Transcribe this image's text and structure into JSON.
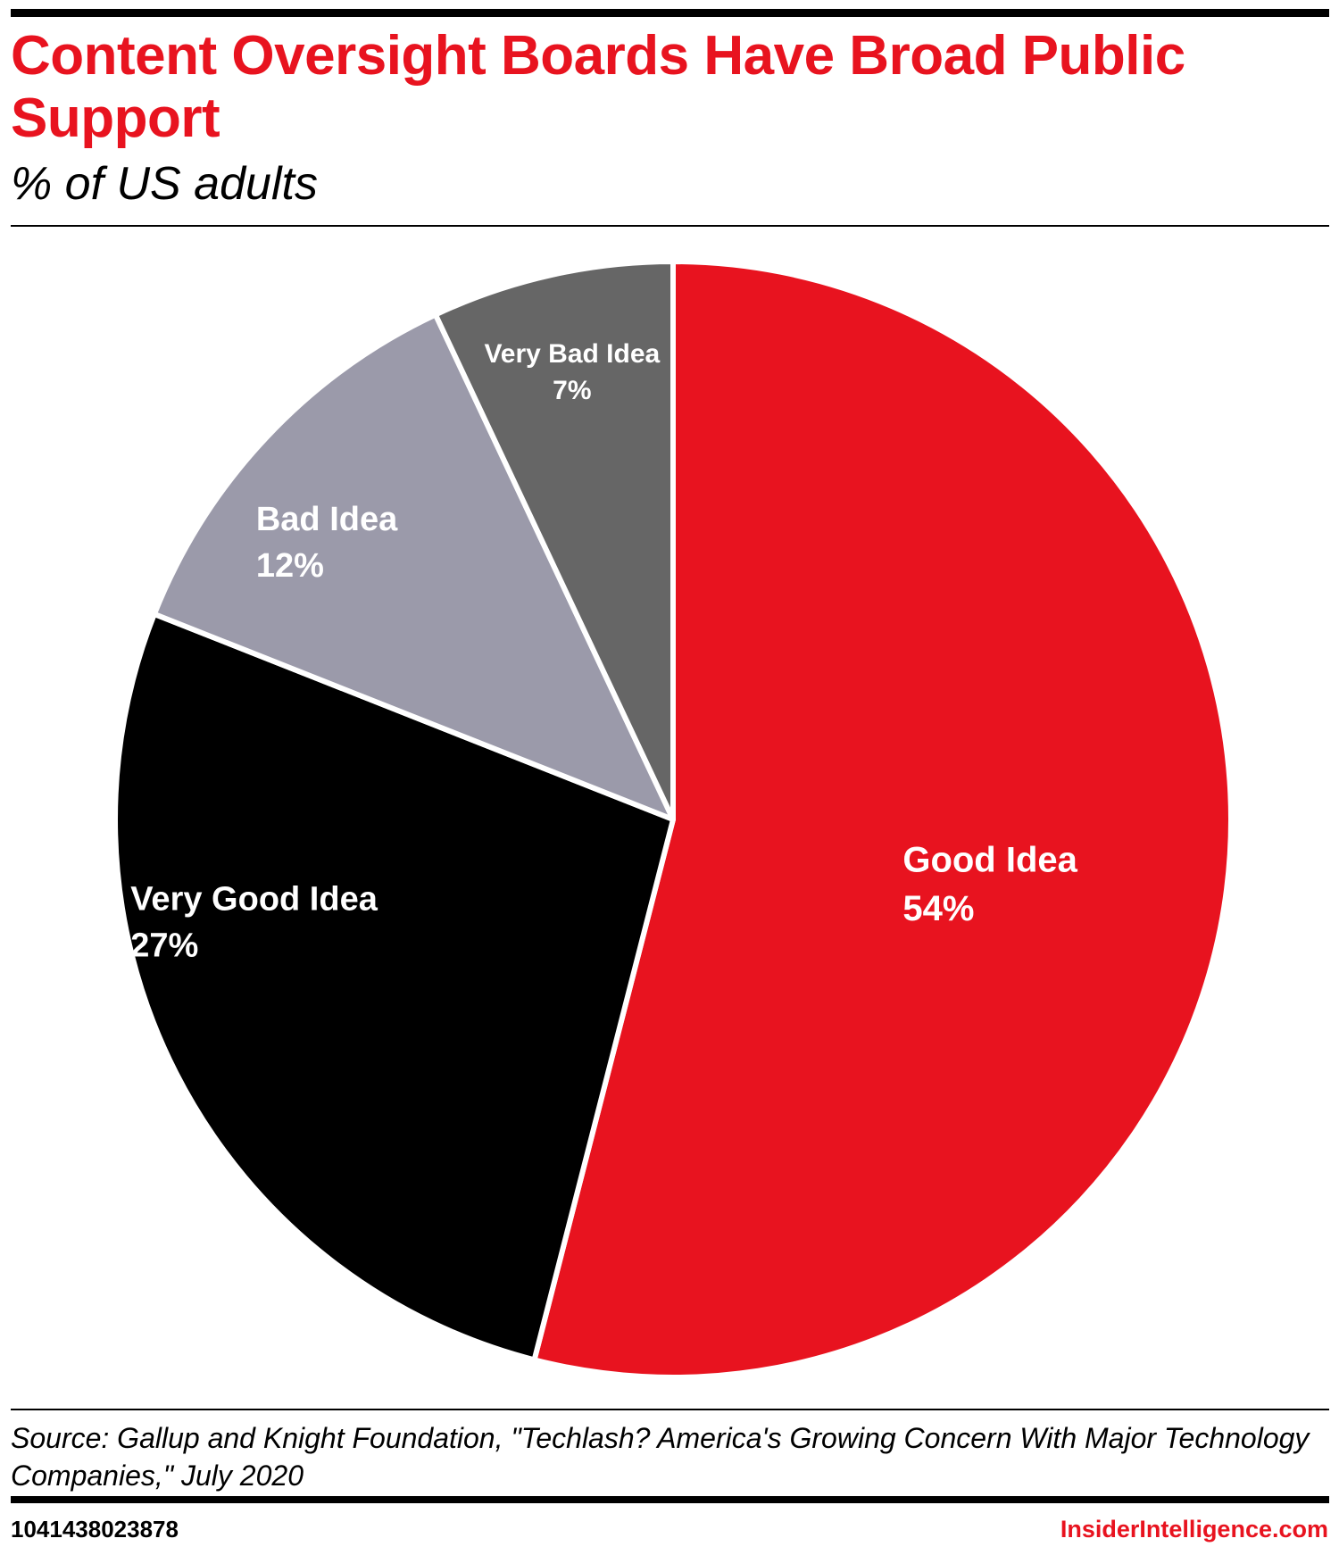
{
  "header": {
    "title": "Content Oversight Boards Have Broad Public Support",
    "subtitle": "% of US adults"
  },
  "chart_data": {
    "type": "pie",
    "title": "Content Oversight Boards Have Broad Public Support",
    "subtitle": "% of US adults",
    "unit": "%",
    "start": "12 o'clock",
    "direction": "clockwise",
    "slices": [
      {
        "label": "Good Idea",
        "value": 54,
        "value_label": "54%",
        "color": "#e8131f"
      },
      {
        "label": "Very Good Idea",
        "value": 27,
        "value_label": "27%",
        "color": "#000000"
      },
      {
        "label": "Bad Idea",
        "value": 12,
        "value_label": "12%",
        "color": "#9b9aaa"
      },
      {
        "label": "Very Bad Idea",
        "value": 7,
        "value_label": "7%",
        "color": "#666666"
      }
    ],
    "legend": false
  },
  "footer": {
    "source": "Source: Gallup and Knight Foundation, \"Techlash? America's Growing Concern With Major Technology Companies,\" July 2020",
    "chart_id": "1041438023878",
    "brand": "InsiderIntelligence.com"
  }
}
